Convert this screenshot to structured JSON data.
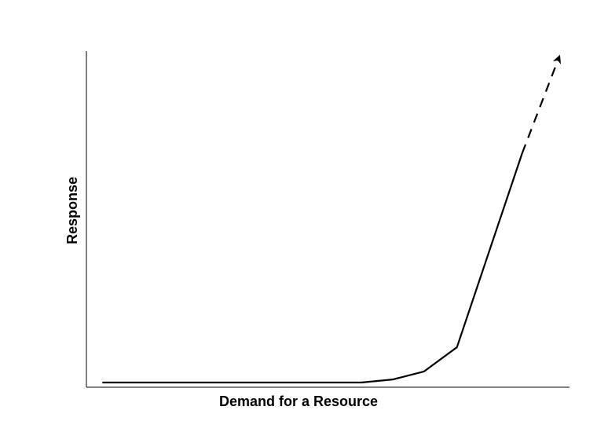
{
  "chart_data": {
    "type": "line",
    "x_label": "Demand for a Resource",
    "y_label": "Response",
    "x": [
      3.3,
      56.9,
      63.4,
      69.9,
      76.7,
      90.2,
      97.9
    ],
    "series": [
      {
        "color": "#000000",
        "dashed": false,
        "values": [
          1.4,
          1.4,
          2.3,
          4.7,
          11.9,
          69.6,
          null
        ]
      },
      {
        "color": "#000000",
        "dashed": true,
        "arrow": true,
        "values": [
          null,
          null,
          null,
          null,
          null,
          69.6,
          98.4
        ]
      }
    ],
    "xlim": [
      0,
      100
    ],
    "ylim": [
      0,
      100
    ],
    "grid": false
  }
}
